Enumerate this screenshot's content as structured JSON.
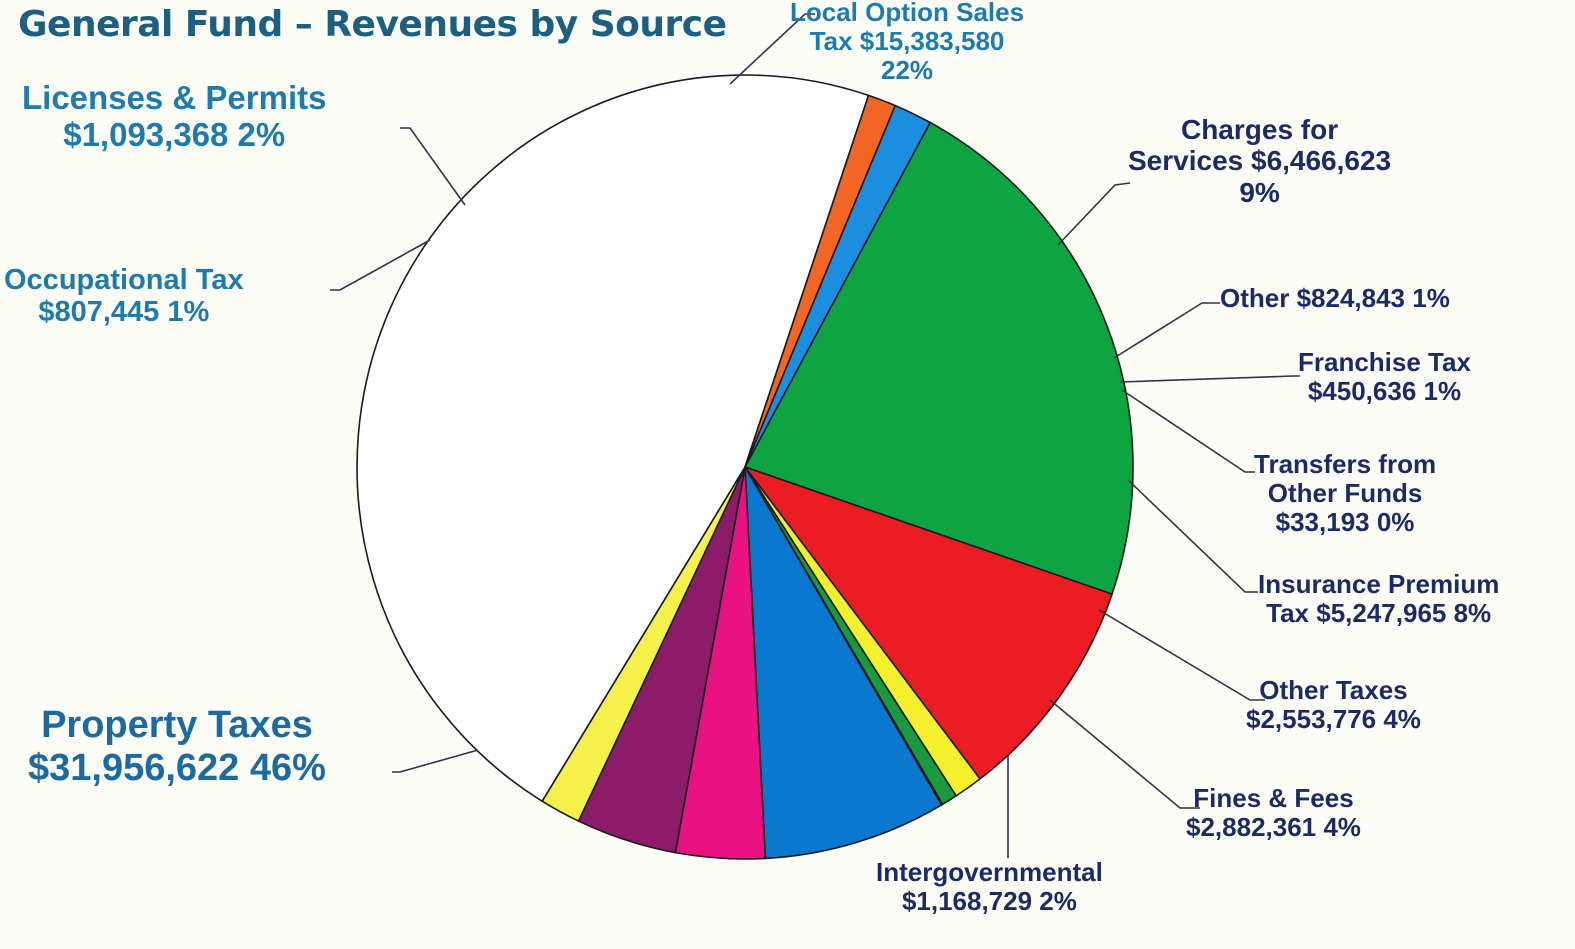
{
  "chart_data": {
    "type": "pie",
    "title": "General Fund – Revenues by Source",
    "slices": [
      {
        "label": "Local Option Sales Tax",
        "value": 15383580,
        "percent": "22%",
        "color": "#0ea441"
      },
      {
        "label": "Charges for Services",
        "value": 6466623,
        "percent": "9%",
        "color": "#ec1c24"
      },
      {
        "label": "Other",
        "value": 824843,
        "percent": "1%",
        "color": "#f5f02e"
      },
      {
        "label": "Franchise Tax",
        "value": 450636,
        "percent": "1%",
        "color": "#1a9a3c"
      },
      {
        "label": "Transfers from Other Funds",
        "value": 33193,
        "percent": "0%",
        "color": "#0b6bbd"
      },
      {
        "label": "Insurance Premium Tax",
        "value": 5247965,
        "percent": "8%",
        "color": "#0b78cf"
      },
      {
        "label": "Other Taxes",
        "value": 2553776,
        "percent": "4%",
        "color": "#ea1282"
      },
      {
        "label": "Fines & Fees",
        "value": 2882361,
        "percent": "4%",
        "color": "#8c1c6a"
      },
      {
        "label": "Intergovernmental",
        "value": 1168729,
        "percent": "2%",
        "color": "#f5f04a"
      },
      {
        "label": "Property Taxes",
        "value": 31956622,
        "percent": "46%",
        "color": "#ffffff"
      },
      {
        "label": "Occupational Tax",
        "value": 807445,
        "percent": "1%",
        "color": "#f26522"
      },
      {
        "label": "Licenses & Permits",
        "value": 1093368,
        "percent": "2%",
        "color": "#1c8ee0"
      }
    ]
  },
  "labels": {
    "local_option": {
      "line1": "Local Option Sales",
      "line2": "Tax $15,383,580",
      "line3": "22%"
    },
    "charges": {
      "line1": "Charges for",
      "line2": "Services $6,466,623",
      "line3": "9%"
    },
    "other": {
      "line1": "Other $824,843  1%"
    },
    "franchise": {
      "line1": "Franchise Tax",
      "line2": "$450,636  1%"
    },
    "transfers": {
      "line1": "Transfers from",
      "line2": "Other Funds",
      "line3": "$33,193  0%"
    },
    "insurance": {
      "line1": "Insurance Premium",
      "line2": "Tax $5,247,965  8%"
    },
    "other_taxes": {
      "line1": "Other Taxes",
      "line2": "$2,553,776  4%"
    },
    "fines": {
      "line1": "Fines & Fees",
      "line2": "$2,882,361  4%"
    },
    "intergov": {
      "line1": "Intergovernmental",
      "line2": "$1,168,729  2%"
    },
    "property": {
      "line1": "Property Taxes",
      "line2": "$31,956,622  46%"
    },
    "occupational": {
      "line1": "Occupational Tax",
      "line2": "$807,445  1%"
    },
    "licenses": {
      "line1": "Licenses & Permits",
      "line2": "$1,093,368  2%"
    }
  }
}
